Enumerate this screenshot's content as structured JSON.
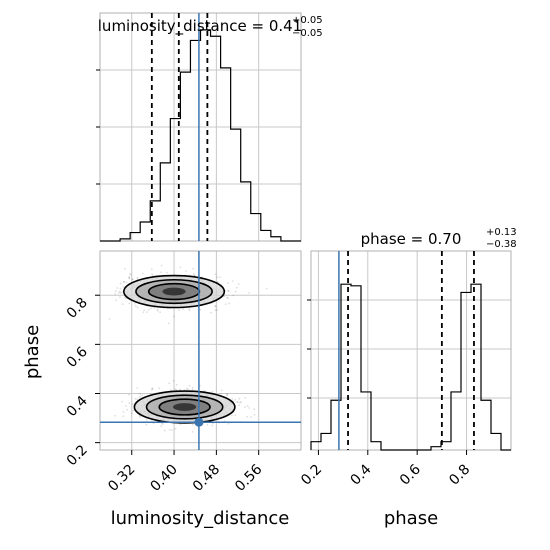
{
  "chart_data": {
    "type": "corner",
    "parameters": [
      "luminosity_distance",
      "phase"
    ],
    "truths": {
      "luminosity_distance": 0.447,
      "phase": 0.283
    },
    "titles": [
      {
        "param": "luminosity_distance",
        "label": "luminosity_distance",
        "median": "0.41",
        "plus": "+0.05",
        "minus": "−0.05"
      },
      {
        "param": "phase",
        "label": "phase",
        "median": "0.70",
        "plus": "+0.13",
        "minus": "−0.38"
      }
    ],
    "marginal_luminosity_distance": {
      "xlim": [
        0.26,
        0.64
      ],
      "bin_edges": [
        0.26,
        0.279,
        0.298,
        0.317,
        0.336,
        0.355,
        0.374,
        0.393,
        0.412,
        0.431,
        0.45,
        0.469,
        0.488,
        0.507,
        0.526,
        0.545,
        0.564,
        0.583,
        0.602,
        0.621,
        0.64
      ],
      "counts": [
        0,
        0,
        0.01,
        0.04,
        0.09,
        0.19,
        0.37,
        0.58,
        0.8,
        0.95,
        1.0,
        0.97,
        0.82,
        0.53,
        0.28,
        0.13,
        0.05,
        0.02,
        0,
        0
      ],
      "quantiles": [
        0.358,
        0.409,
        0.463
      ]
    },
    "marginal_phase": {
      "xlim": [
        0.17,
        0.98
      ],
      "bin_edges": [
        0.17,
        0.2105,
        0.251,
        0.2915,
        0.332,
        0.3725,
        0.413,
        0.4535,
        0.494,
        0.5345,
        0.575,
        0.6155,
        0.656,
        0.6965,
        0.737,
        0.7775,
        0.818,
        0.8585,
        0.899,
        0.9395,
        0.98
      ],
      "counts": [
        0.05,
        0.1,
        0.3,
        1.0,
        0.99,
        0.35,
        0.05,
        0,
        0,
        0,
        0,
        0,
        0.02,
        0.05,
        0.35,
        0.95,
        1.0,
        0.3,
        0.1,
        0
      ],
      "quantiles": [
        0.32,
        0.7,
        0.83
      ]
    },
    "joint": {
      "xlim": [
        0.26,
        0.64
      ],
      "ylim": [
        0.17,
        0.98
      ],
      "x_ticks": [
        "0.32",
        "0.40",
        "0.48",
        "0.56"
      ],
      "x_tick_values": [
        0.32,
        0.4,
        0.48,
        0.56
      ],
      "y_ticks": [
        "0.2",
        "0.4",
        "0.6",
        "0.8"
      ],
      "y_tick_values": [
        0.2,
        0.4,
        0.6,
        0.8
      ],
      "modes": [
        {
          "x": 0.4,
          "y": 0.815
        },
        {
          "x": 0.42,
          "y": 0.345
        }
      ]
    },
    "phase_x_ticks": [
      "0.2",
      "0.4",
      "0.6",
      "0.8"
    ],
    "phase_x_tick_values": [
      0.2,
      0.4,
      0.6,
      0.8
    ],
    "xlabel_left": "luminosity_distance",
    "xlabel_right": "phase",
    "ylabel": "phase",
    "grid": true,
    "truth_color": "#3b75af",
    "contour_color": "#000000"
  }
}
